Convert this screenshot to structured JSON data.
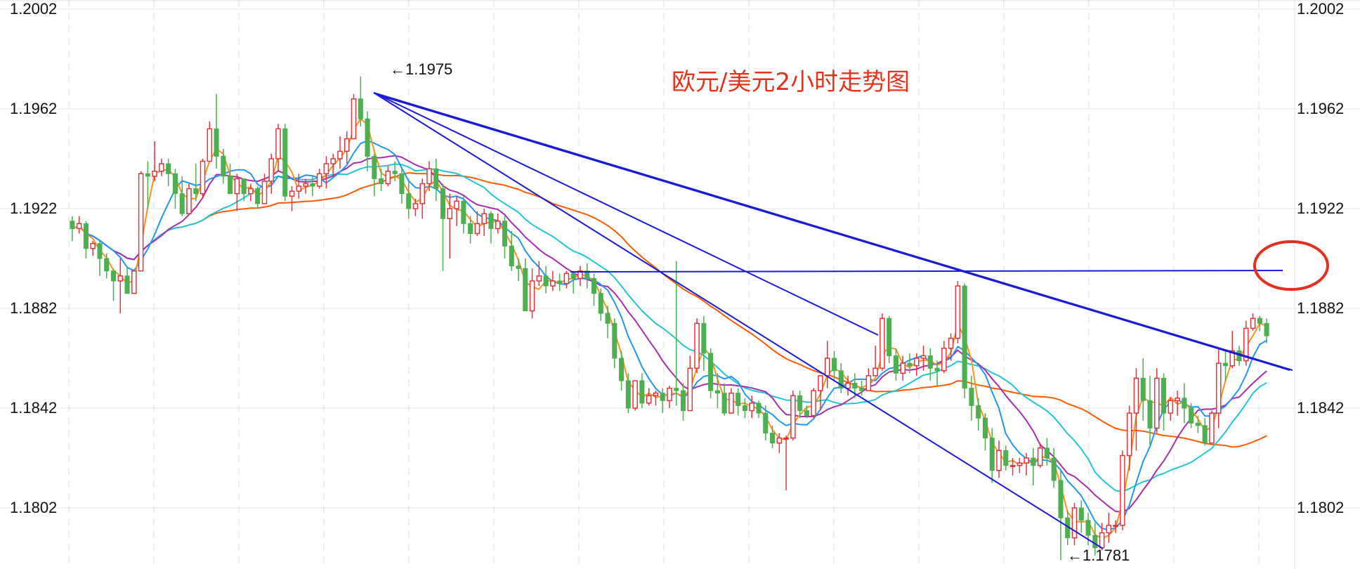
{
  "chart_data": {
    "type": "candlestick",
    "title": "欧元/美元2小时走势图",
    "y_ticks": [
      "1.2002",
      "1.1962",
      "1.1922",
      "1.1882",
      "1.1842",
      "1.1802"
    ],
    "ylim": [
      1.1785,
      1.2004
    ],
    "grid": true,
    "annotations": [
      {
        "text": "←1.1975",
        "value": 1.1975
      },
      {
        "text": "←1.1781",
        "value": 1.1781
      }
    ],
    "colors": {
      "up": "#e8333c",
      "down": "#4caf50",
      "ma_orange": "#f7931e",
      "ma_blue": "#2196f3",
      "ma_purple": "#aa2cb0",
      "ma_cyan": "#22c5d6",
      "ma_long": "#ff5a00",
      "trendline": "#1a1adb",
      "highlight_circle": "#e62e1e",
      "title": "#e8331c"
    },
    "candles": [
      [
        1.1917,
        1.1914,
        1.1919,
        1.1909
      ],
      [
        1.1914,
        1.1916,
        1.1919,
        1.1912
      ],
      [
        1.1916,
        1.1906,
        1.1917,
        1.1902
      ],
      [
        1.1906,
        1.1908,
        1.1909,
        1.1903
      ],
      [
        1.1908,
        1.1902,
        1.1909,
        1.1895
      ],
      [
        1.1902,
        1.1897,
        1.1904,
        1.1894
      ],
      [
        1.1897,
        1.1893,
        1.1898,
        1.1885
      ],
      [
        1.1893,
        1.1895,
        1.1902,
        1.188
      ],
      [
        1.1895,
        1.1888,
        1.1899,
        1.1888
      ],
      [
        1.1888,
        1.1897,
        1.1897,
        1.1888
      ],
      [
        1.1897,
        1.1936,
        1.1937,
        1.1897
      ],
      [
        1.1936,
        1.1935,
        1.1941,
        1.1922
      ],
      [
        1.1935,
        1.1937,
        1.1949,
        1.1933
      ],
      [
        1.1937,
        1.194,
        1.1942,
        1.1935
      ],
      [
        1.194,
        1.1936,
        1.1942,
        1.1931
      ],
      [
        1.1936,
        1.1928,
        1.1938,
        1.1922
      ],
      [
        1.1928,
        1.192,
        1.1935,
        1.1919
      ],
      [
        1.192,
        1.193,
        1.1932,
        1.192
      ],
      [
        1.193,
        1.1928,
        1.194,
        1.1925
      ],
      [
        1.1928,
        1.1941,
        1.1942,
        1.1926
      ],
      [
        1.1941,
        1.1954,
        1.1957,
        1.1941
      ],
      [
        1.1954,
        1.1943,
        1.1968,
        1.1938
      ],
      [
        1.1943,
        1.1935,
        1.1946,
        1.1932
      ],
      [
        1.1935,
        1.1928,
        1.194,
        1.1928
      ],
      [
        1.1928,
        1.1934,
        1.1936,
        1.1921
      ],
      [
        1.1934,
        1.1928,
        1.1934,
        1.1925
      ],
      [
        1.1928,
        1.193,
        1.1932,
        1.1925
      ],
      [
        1.193,
        1.1924,
        1.1931,
        1.1922
      ],
      [
        1.1924,
        1.1933,
        1.1936,
        1.1924
      ],
      [
        1.1933,
        1.1942,
        1.1944,
        1.1928
      ],
      [
        1.1942,
        1.1954,
        1.1956,
        1.1937
      ],
      [
        1.1954,
        1.1927,
        1.1956,
        1.1925
      ],
      [
        1.1927,
        1.1929,
        1.1931,
        1.1921
      ],
      [
        1.1929,
        1.1931,
        1.1936,
        1.1926
      ],
      [
        1.1931,
        1.1932,
        1.1934,
        1.1928
      ],
      [
        1.1932,
        1.1931,
        1.1935,
        1.1927
      ],
      [
        1.1931,
        1.1936,
        1.1938,
        1.193
      ],
      [
        1.1936,
        1.194,
        1.1943,
        1.193
      ],
      [
        1.194,
        1.1942,
        1.1944,
        1.1935
      ],
      [
        1.1942,
        1.1945,
        1.1951,
        1.1938
      ],
      [
        1.1945,
        1.195,
        1.1953,
        1.194
      ],
      [
        1.195,
        1.1966,
        1.1968,
        1.195
      ],
      [
        1.1966,
        1.1958,
        1.1975,
        1.1955
      ],
      [
        1.1958,
        1.1943,
        1.1961,
        1.1937
      ],
      [
        1.1943,
        1.1934,
        1.1944,
        1.1927
      ],
      [
        1.1934,
        1.1932,
        1.1938,
        1.1929
      ],
      [
        1.1932,
        1.1937,
        1.1939,
        1.1931
      ],
      [
        1.1937,
        1.1936,
        1.1941,
        1.1933
      ],
      [
        1.1936,
        1.1928,
        1.1938,
        1.1924
      ],
      [
        1.1928,
        1.1922,
        1.1933,
        1.1918
      ],
      [
        1.1922,
        1.1924,
        1.1926,
        1.1919
      ],
      [
        1.1924,
        1.1932,
        1.1934,
        1.1918
      ],
      [
        1.1932,
        1.1938,
        1.1941,
        1.1929
      ],
      [
        1.1938,
        1.193,
        1.1942,
        1.1925
      ],
      [
        1.193,
        1.1918,
        1.1932,
        1.1897
      ],
      [
        1.1918,
        1.1922,
        1.1928,
        1.1902
      ],
      [
        1.1922,
        1.1925,
        1.1927,
        1.1915
      ],
      [
        1.1925,
        1.1916,
        1.1927,
        1.1912
      ],
      [
        1.1916,
        1.1912,
        1.1919,
        1.1908
      ],
      [
        1.1912,
        1.1916,
        1.1921,
        1.1911
      ],
      [
        1.1916,
        1.192,
        1.1922,
        1.1911
      ],
      [
        1.192,
        1.1914,
        1.1921,
        1.1908
      ],
      [
        1.1914,
        1.1917,
        1.192,
        1.1912
      ],
      [
        1.1917,
        1.1907,
        1.1919,
        1.1902
      ],
      [
        1.1907,
        1.1899,
        1.1913,
        1.1897
      ],
      [
        1.1899,
        1.1898,
        1.1902,
        1.1893
      ],
      [
        1.1898,
        1.1881,
        1.1902,
        1.1881
      ],
      [
        1.1881,
        1.1893,
        1.1898,
        1.1878
      ],
      [
        1.1893,
        1.1895,
        1.1901,
        1.1891
      ],
      [
        1.1895,
        1.1891,
        1.1899,
        1.1888
      ],
      [
        1.1891,
        1.1893,
        1.1897,
        1.1889
      ],
      [
        1.1893,
        1.1892,
        1.1896,
        1.1889
      ],
      [
        1.1892,
        1.1896,
        1.1897,
        1.189
      ],
      [
        1.1896,
        1.1894,
        1.1897,
        1.1888
      ],
      [
        1.1894,
        1.1897,
        1.1899,
        1.1891
      ],
      [
        1.1897,
        1.1894,
        1.19,
        1.189
      ],
      [
        1.1894,
        1.1888,
        1.1896,
        1.1883
      ],
      [
        1.1888,
        1.188,
        1.189,
        1.1877
      ],
      [
        1.188,
        1.1876,
        1.1883,
        1.187
      ],
      [
        1.1876,
        1.1862,
        1.1878,
        1.1858
      ],
      [
        1.1862,
        1.1853,
        1.1865,
        1.1849
      ],
      [
        1.1853,
        1.1842,
        1.1856,
        1.184
      ],
      [
        1.1842,
        1.1853,
        1.1853,
        1.1841
      ],
      [
        1.1853,
        1.1844,
        1.1856,
        1.1842
      ],
      [
        1.1844,
        1.1847,
        1.185,
        1.1843
      ],
      [
        1.1847,
        1.1848,
        1.1849,
        1.1843
      ],
      [
        1.1848,
        1.1845,
        1.185,
        1.184
      ],
      [
        1.1845,
        1.185,
        1.1851,
        1.1842
      ],
      [
        1.185,
        1.1849,
        1.1901,
        1.1843
      ],
      [
        1.1849,
        1.1841,
        1.1852,
        1.1837
      ],
      [
        1.1841,
        1.1858,
        1.1863,
        1.1841
      ],
      [
        1.1858,
        1.1876,
        1.1878,
        1.1856
      ],
      [
        1.1876,
        1.1864,
        1.1879,
        1.1857
      ],
      [
        1.1864,
        1.1849,
        1.1866,
        1.1846
      ],
      [
        1.1849,
        1.1848,
        1.1856,
        1.1842
      ],
      [
        1.1848,
        1.184,
        1.1852,
        1.1839
      ],
      [
        1.184,
        1.1848,
        1.185,
        1.184
      ],
      [
        1.1848,
        1.1843,
        1.185,
        1.1839
      ],
      [
        1.1843,
        1.1841,
        1.1846,
        1.1838
      ],
      [
        1.1841,
        1.1844,
        1.1847,
        1.1838
      ],
      [
        1.1844,
        1.184,
        1.1845,
        1.1838
      ],
      [
        1.184,
        1.1832,
        1.1843,
        1.1829
      ],
      [
        1.1832,
        1.1828,
        1.1835,
        1.1826
      ],
      [
        1.1828,
        1.183,
        1.1832,
        1.1824
      ],
      [
        1.183,
        1.183,
        1.1831,
        1.1809
      ],
      [
        1.183,
        1.1847,
        1.1849,
        1.1829
      ],
      [
        1.1847,
        1.1841,
        1.1849,
        1.1838
      ],
      [
        1.1841,
        1.1839,
        1.1843,
        1.1838
      ],
      [
        1.1839,
        1.1849,
        1.185,
        1.1838
      ],
      [
        1.1849,
        1.1855,
        1.1855,
        1.1841
      ],
      [
        1.1855,
        1.1862,
        1.1869,
        1.185
      ],
      [
        1.1862,
        1.1857,
        1.1865,
        1.1853
      ],
      [
        1.1857,
        1.185,
        1.186,
        1.1848
      ],
      [
        1.185,
        1.1852,
        1.1855,
        1.1847
      ],
      [
        1.1852,
        1.185,
        1.1856,
        1.1846
      ],
      [
        1.185,
        1.1849,
        1.1853,
        1.1847
      ],
      [
        1.1849,
        1.1855,
        1.1858,
        1.1849
      ],
      [
        1.1855,
        1.1858,
        1.1867,
        1.1855
      ],
      [
        1.1858,
        1.1878,
        1.188,
        1.1857
      ],
      [
        1.1878,
        1.1863,
        1.1879,
        1.186
      ],
      [
        1.1863,
        1.1856,
        1.1866,
        1.1853
      ],
      [
        1.1856,
        1.186,
        1.1863,
        1.1853
      ],
      [
        1.186,
        1.1859,
        1.1864,
        1.1856
      ],
      [
        1.1859,
        1.1862,
        1.1864,
        1.1855
      ],
      [
        1.1862,
        1.1863,
        1.1867,
        1.1857
      ],
      [
        1.1863,
        1.1858,
        1.1866,
        1.1853
      ],
      [
        1.1858,
        1.1857,
        1.1861,
        1.1851
      ],
      [
        1.1857,
        1.1866,
        1.1869,
        1.1856
      ],
      [
        1.1866,
        1.187,
        1.1872,
        1.1861
      ],
      [
        1.187,
        1.1891,
        1.1893,
        1.1868
      ],
      [
        1.1891,
        1.185,
        1.1892,
        1.1846
      ],
      [
        1.185,
        1.1843,
        1.1855,
        1.1837
      ],
      [
        1.1843,
        1.1838,
        1.1846,
        1.1833
      ],
      [
        1.1838,
        1.183,
        1.184,
        1.1825
      ],
      [
        1.183,
        1.1817,
        1.1834,
        1.1812
      ],
      [
        1.1817,
        1.1825,
        1.1829,
        1.1814
      ],
      [
        1.1825,
        1.1819,
        1.1827,
        1.1817
      ],
      [
        1.1819,
        1.1819,
        1.1822,
        1.1815
      ],
      [
        1.1819,
        1.182,
        1.1822,
        1.1816
      ],
      [
        1.182,
        1.1822,
        1.1824,
        1.1815
      ],
      [
        1.1822,
        1.1819,
        1.1826,
        1.1811
      ],
      [
        1.1819,
        1.1826,
        1.1828,
        1.1818
      ],
      [
        1.1826,
        1.1822,
        1.183,
        1.1819
      ],
      [
        1.1822,
        1.1813,
        1.1826,
        1.181
      ],
      [
        1.1813,
        1.1798,
        1.1817,
        1.1781
      ],
      [
        1.1798,
        1.179,
        1.1801,
        1.1787
      ],
      [
        1.179,
        1.1802,
        1.1804,
        1.1787
      ],
      [
        1.1802,
        1.1797,
        1.1805,
        1.1792
      ],
      [
        1.1797,
        1.1791,
        1.18,
        1.1787
      ],
      [
        1.1791,
        1.1786,
        1.1796,
        1.1783
      ],
      [
        1.1786,
        1.1792,
        1.1796,
        1.1785
      ],
      [
        1.1792,
        1.1795,
        1.18,
        1.1788
      ],
      [
        1.1795,
        1.1795,
        1.1797,
        1.1792
      ],
      [
        1.1795,
        1.1823,
        1.1825,
        1.1793
      ],
      [
        1.1823,
        1.184,
        1.1843,
        1.1817
      ],
      [
        1.184,
        1.1854,
        1.1858,
        1.1825
      ],
      [
        1.1854,
        1.1845,
        1.1862,
        1.1837
      ],
      [
        1.1845,
        1.1834,
        1.1855,
        1.1827
      ],
      [
        1.1834,
        1.1854,
        1.1858,
        1.1832
      ],
      [
        1.1854,
        1.184,
        1.1856,
        1.1833
      ],
      [
        1.184,
        1.1845,
        1.1846,
        1.1837
      ],
      [
        1.1845,
        1.1846,
        1.1849,
        1.1839
      ],
      [
        1.1846,
        1.1842,
        1.1852,
        1.1836
      ],
      [
        1.1842,
        1.1836,
        1.1844,
        1.1834
      ],
      [
        1.1836,
        1.1835,
        1.1839,
        1.1832
      ],
      [
        1.1835,
        1.1828,
        1.1838,
        1.1827
      ],
      [
        1.1828,
        1.184,
        1.1841,
        1.1828
      ],
      [
        1.184,
        1.186,
        1.1866,
        1.1834
      ],
      [
        1.186,
        1.1859,
        1.1865,
        1.1853
      ],
      [
        1.1859,
        1.1865,
        1.1873,
        1.1858
      ],
      [
        1.1865,
        1.1861,
        1.1867,
        1.1859
      ],
      [
        1.1861,
        1.1874,
        1.1877,
        1.1859
      ],
      [
        1.1874,
        1.1878,
        1.188,
        1.1873
      ],
      [
        1.1878,
        1.1876,
        1.1879,
        1.1873
      ],
      [
        1.1876,
        1.1871,
        1.1878,
        1.1868
      ]
    ]
  }
}
